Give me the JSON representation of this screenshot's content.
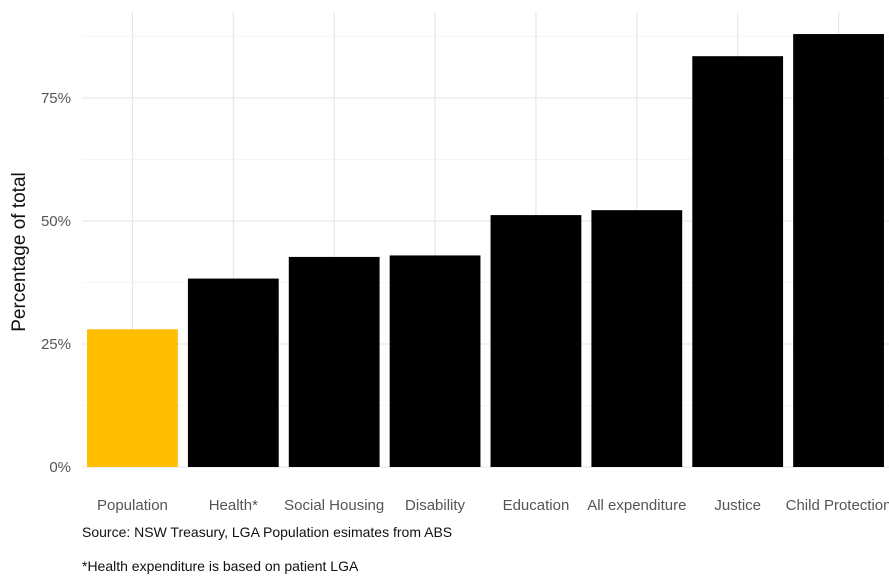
{
  "chart_data": {
    "type": "bar",
    "categories": [
      "Population",
      "Health*",
      "Social Housing",
      "Disability",
      "Education",
      "All expenditure",
      "Justice",
      "Child Protection"
    ],
    "values": [
      28,
      38.3,
      42.7,
      43,
      51.2,
      52.2,
      83.5,
      88
    ],
    "ylabel": "Percentage of total",
    "ylim": [
      0,
      90
    ],
    "yticks": [
      0,
      25,
      50,
      75
    ],
    "ytick_labels": [
      "0%",
      "25%",
      "50%",
      "75%"
    ],
    "grid": true,
    "legend": "none",
    "colors": {
      "highlight": "#FFBE00",
      "default": "#000000",
      "grid_major": "#E6E6E6",
      "grid_minor": "#F2F2F2"
    },
    "highlight_category": "Population"
  },
  "notes": {
    "source": "Source: NSW Treasury, LGA Population esimates from ABS",
    "health": "*Health expenditure is based on patient LGA"
  }
}
